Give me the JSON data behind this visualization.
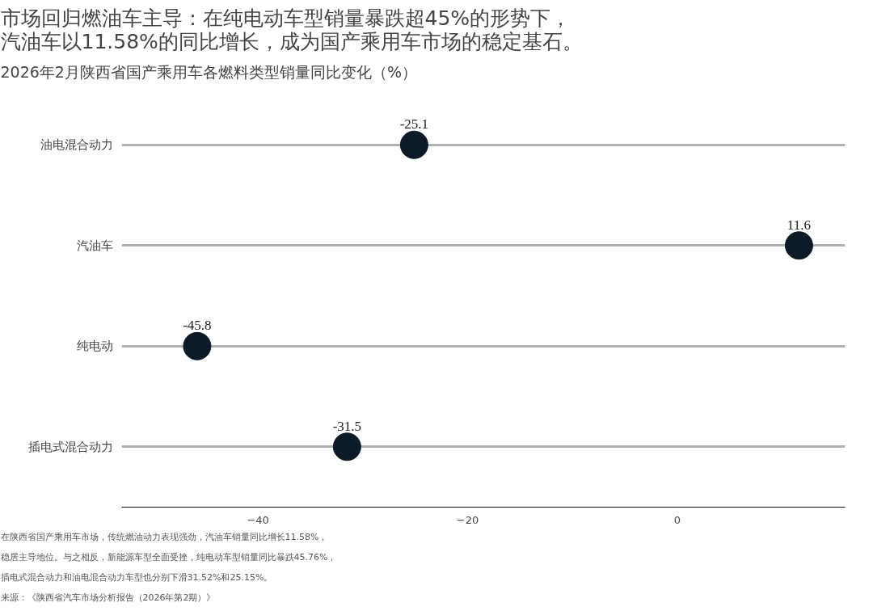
{
  "chart_data": {
    "type": "scatter",
    "orientation": "horizontal",
    "title": "市场回归燃油车主导：在纯电动车型销量暴跌超45%的形势下，汽油车以11.58%的同比增长，成为国产乘用车市场的稳定基石。",
    "subtitle": "2026年2月陕西省国产乘用车各燃料类型销量同比变化（%）",
    "categories": [
      "油电混合动力",
      "汽油车",
      "纯电动",
      "插电式混合动力"
    ],
    "series": [
      {
        "color": "#0b1a26",
        "values": [
          -25.1,
          11.6,
          -45.8,
          -31.5
        ]
      }
    ],
    "xlim": [
      -53,
      16
    ],
    "xticks": [
      -40,
      -20,
      0
    ],
    "grid": "y",
    "data_labels": true,
    "marker": "circle",
    "annotations": [
      "在陕西省国产乘用车市场，传统燃油动力表现强劲，汽油车销量同比增长11.58%，",
      "稳居主导地位。与之相反，新能源车型全面受挫，纯电动车型销量同比暴跌45.76%，",
      "插电式混合动力和油电混合动力车型也分别下滑31.52%和25.15%。",
      "来源：《陕西省汽车市场分析报告（2026年第2期）》"
    ]
  }
}
